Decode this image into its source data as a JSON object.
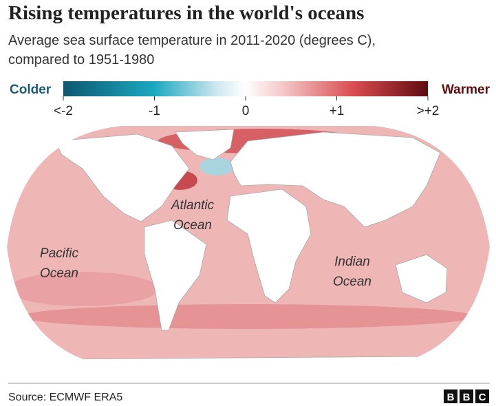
{
  "header": {
    "title": "Rising temperatures in the world's oceans",
    "subtitle": [
      "Average sea surface temperature in 2011-2020 (degrees C),",
      "compared to 1951-1980"
    ]
  },
  "legend": {
    "left_label": "Colder",
    "right_label": "Warmer",
    "range": [
      -2,
      2
    ],
    "ticks": [
      {
        "value": -2,
        "label": "<-2"
      },
      {
        "value": -1,
        "label": "-1"
      },
      0,
      {
        "value": 1,
        "label": "+1"
      },
      {
        "value": 2,
        "label": ">+2"
      }
    ]
  },
  "map": {
    "labels": [
      {
        "lines": [
          "Atlantic",
          "Ocean"
        ]
      },
      {
        "lines": [
          "Pacific",
          "Ocean"
        ]
      },
      {
        "lines": [
          "Indian",
          "Ocean"
        ]
      }
    ]
  },
  "footer": {
    "source": "Source: ECMWF ERA5",
    "logo": [
      "B",
      "B",
      "C"
    ]
  }
}
